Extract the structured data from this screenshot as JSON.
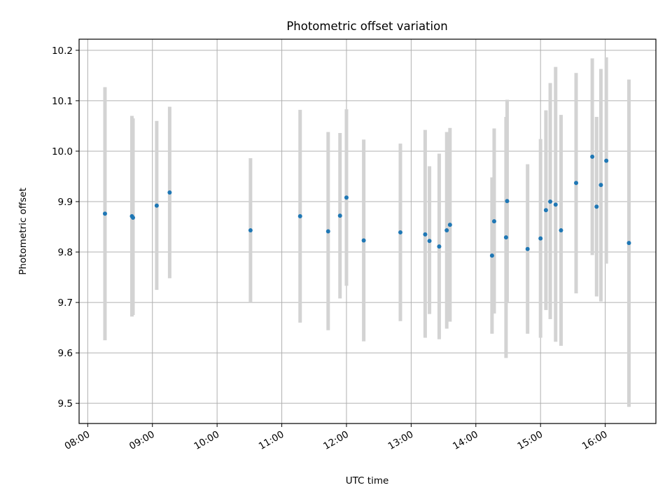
{
  "chart_data": {
    "type": "scatter",
    "title": "Photometric offset variation",
    "xlabel": "UTC time",
    "ylabel": "Photometric offset",
    "xlim": [
      "07:52",
      "16:47"
    ],
    "ylim": [
      9.46,
      10.222
    ],
    "grid": true,
    "legend": "none",
    "colors": {
      "point": "#1f77b4",
      "errorbar": "#d3d3d3",
      "grid": "#b0b0b0"
    },
    "x_ticks": [
      "08:00",
      "09:00",
      "10:00",
      "11:00",
      "12:00",
      "13:00",
      "14:00",
      "15:00",
      "16:00"
    ],
    "y_ticks": [
      9.5,
      9.6,
      9.7,
      9.8,
      9.9,
      10.0,
      10.1,
      10.2
    ],
    "points": [
      {
        "x": "08:16",
        "y": 9.876,
        "ylo": 9.625,
        "yhi": 10.127
      },
      {
        "x": "08:41",
        "y": 9.871,
        "ylo": 9.672,
        "yhi": 10.07
      },
      {
        "x": "08:42",
        "y": 9.868,
        "ylo": 9.675,
        "yhi": 10.065
      },
      {
        "x": "09:04",
        "y": 9.892,
        "ylo": 9.725,
        "yhi": 10.06
      },
      {
        "x": "09:16",
        "y": 9.918,
        "ylo": 9.748,
        "yhi": 10.088
      },
      {
        "x": "10:31",
        "y": 9.843,
        "ylo": 9.7,
        "yhi": 9.986
      },
      {
        "x": "11:17",
        "y": 9.871,
        "ylo": 9.66,
        "yhi": 10.082
      },
      {
        "x": "11:43",
        "y": 9.841,
        "ylo": 9.645,
        "yhi": 10.038
      },
      {
        "x": "11:54",
        "y": 9.872,
        "ylo": 9.708,
        "yhi": 10.036
      },
      {
        "x": "12:00",
        "y": 9.908,
        "ylo": 9.733,
        "yhi": 10.083
      },
      {
        "x": "12:16",
        "y": 9.823,
        "ylo": 9.623,
        "yhi": 10.023
      },
      {
        "x": "12:50",
        "y": 9.839,
        "ylo": 9.663,
        "yhi": 10.015
      },
      {
        "x": "13:13",
        "y": 9.835,
        "ylo": 9.63,
        "yhi": 10.042
      },
      {
        "x": "13:17",
        "y": 9.822,
        "ylo": 9.677,
        "yhi": 9.97
      },
      {
        "x": "13:26",
        "y": 9.811,
        "ylo": 9.627,
        "yhi": 9.995
      },
      {
        "x": "13:33",
        "y": 9.843,
        "ylo": 9.648,
        "yhi": 10.038
      },
      {
        "x": "13:36",
        "y": 9.854,
        "ylo": 9.662,
        "yhi": 10.046
      },
      {
        "x": "14:15",
        "y": 9.793,
        "ylo": 9.638,
        "yhi": 9.948
      },
      {
        "x": "14:17",
        "y": 9.861,
        "ylo": 9.678,
        "yhi": 10.045
      },
      {
        "x": "14:28",
        "y": 9.829,
        "ylo": 9.59,
        "yhi": 10.068
      },
      {
        "x": "14:29",
        "y": 9.901,
        "ylo": 9.7,
        "yhi": 10.102
      },
      {
        "x": "14:48",
        "y": 9.806,
        "ylo": 9.638,
        "yhi": 9.974
      },
      {
        "x": "15:00",
        "y": 9.827,
        "ylo": 9.63,
        "yhi": 10.024
      },
      {
        "x": "15:05",
        "y": 9.883,
        "ylo": 9.685,
        "yhi": 10.081
      },
      {
        "x": "15:09",
        "y": 9.9,
        "ylo": 9.667,
        "yhi": 10.135
      },
      {
        "x": "15:14",
        "y": 9.894,
        "ylo": 9.622,
        "yhi": 10.167
      },
      {
        "x": "15:19",
        "y": 9.843,
        "ylo": 9.614,
        "yhi": 10.072
      },
      {
        "x": "15:33",
        "y": 9.937,
        "ylo": 9.718,
        "yhi": 10.155
      },
      {
        "x": "15:48",
        "y": 9.989,
        "ylo": 9.794,
        "yhi": 10.184
      },
      {
        "x": "15:52",
        "y": 9.89,
        "ylo": 9.712,
        "yhi": 10.068
      },
      {
        "x": "15:56",
        "y": 9.933,
        "ylo": 9.702,
        "yhi": 10.163
      },
      {
        "x": "16:01",
        "y": 9.981,
        "ylo": 9.777,
        "yhi": 10.186
      },
      {
        "x": "16:22",
        "y": 9.818,
        "ylo": 9.493,
        "yhi": 10.142
      }
    ]
  }
}
